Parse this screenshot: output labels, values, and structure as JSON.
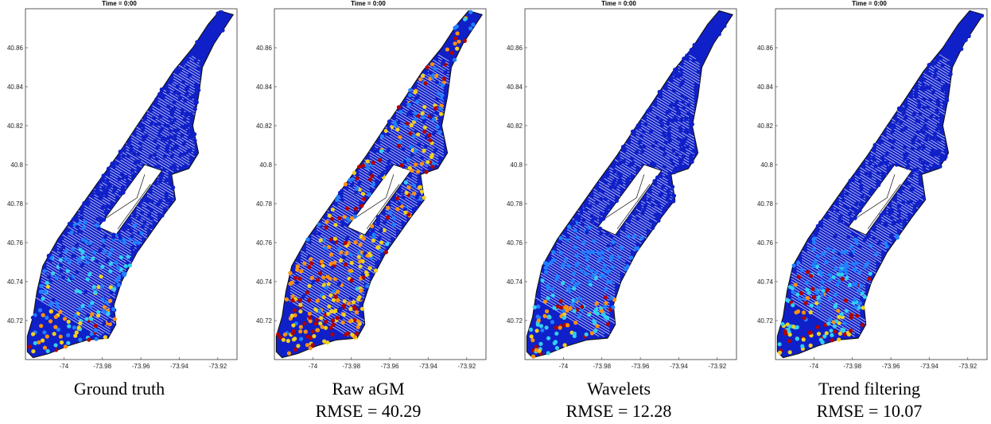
{
  "colors": {
    "low": "#1020c8",
    "mid_blue": "#2080ff",
    "cyan": "#30d0f0",
    "yellow": "#f0d020",
    "orange": "#ff9010",
    "red": "#b00000",
    "road": "#111111"
  },
  "chart_data": [
    {
      "type": "scatter",
      "title": "Time = 0:00",
      "caption": "Ground truth",
      "rmse": "",
      "xlim": [
        -74.02,
        -73.91
      ],
      "ylim": [
        40.7,
        40.88
      ],
      "xticks": [
        "-74",
        "-73.98",
        "-73.96",
        "-73.94",
        "-73.92"
      ],
      "xtick_values": [
        -74,
        -73.98,
        -73.96,
        -73.94,
        -73.92
      ],
      "yticks": [
        "40.72",
        "40.74",
        "40.76",
        "40.78",
        "40.8",
        "40.82",
        "40.84",
        "40.86"
      ],
      "ytick_values": [
        40.72,
        40.74,
        40.76,
        40.78,
        40.8,
        40.82,
        40.84,
        40.86
      ],
      "hotness": 0.55
    },
    {
      "type": "scatter",
      "title": "Time = 0:00",
      "caption": "Raw aGM",
      "rmse": "RMSE = 40.29",
      "xlim": [
        -74.02,
        -73.91
      ],
      "ylim": [
        40.7,
        40.88
      ],
      "xticks": [
        "-74",
        "-73.98",
        "-73.96",
        "-73.94",
        "-73.92"
      ],
      "xtick_values": [
        -74,
        -73.98,
        -73.96,
        -73.94,
        -73.92
      ],
      "yticks": [
        "40.72",
        "40.74",
        "40.76",
        "40.78",
        "40.8",
        "40.82",
        "40.84",
        "40.86"
      ],
      "ytick_values": [
        40.72,
        40.74,
        40.76,
        40.78,
        40.8,
        40.82,
        40.84,
        40.86
      ],
      "hotness": 0.95
    },
    {
      "type": "scatter",
      "title": "Time = 0:00",
      "caption": "Wavelets",
      "rmse": "RMSE = 12.28",
      "xlim": [
        -74.02,
        -73.91
      ],
      "ylim": [
        40.7,
        40.88
      ],
      "xticks": [
        "-74",
        "-73.98",
        "-73.96",
        "-73.94",
        "-73.92"
      ],
      "xtick_values": [
        -74,
        -73.98,
        -73.96,
        -73.94,
        -73.92
      ],
      "yticks": [
        "40.72",
        "40.74",
        "40.76",
        "40.78",
        "40.8",
        "40.82",
        "40.84",
        "40.86"
      ],
      "ytick_values": [
        40.72,
        40.74,
        40.76,
        40.78,
        40.8,
        40.82,
        40.84,
        40.86
      ],
      "hotness": 0.35
    },
    {
      "type": "scatter",
      "title": "Time = 0:00",
      "caption": "Trend filtering",
      "rmse": "RMSE = 10.07",
      "xlim": [
        -74.02,
        -73.91
      ],
      "ylim": [
        40.7,
        40.88
      ],
      "xticks": [
        "-74",
        "-73.98",
        "-73.96",
        "-73.94",
        "-73.92"
      ],
      "xtick_values": [
        -74,
        -73.98,
        -73.96,
        -73.94,
        -73.92
      ],
      "yticks": [
        "40.72",
        "40.74",
        "40.76",
        "40.78",
        "40.8",
        "40.82",
        "40.84",
        "40.86"
      ],
      "ytick_values": [
        40.72,
        40.74,
        40.76,
        40.78,
        40.8,
        40.82,
        40.84,
        40.86
      ],
      "hotness": 0.5
    }
  ]
}
